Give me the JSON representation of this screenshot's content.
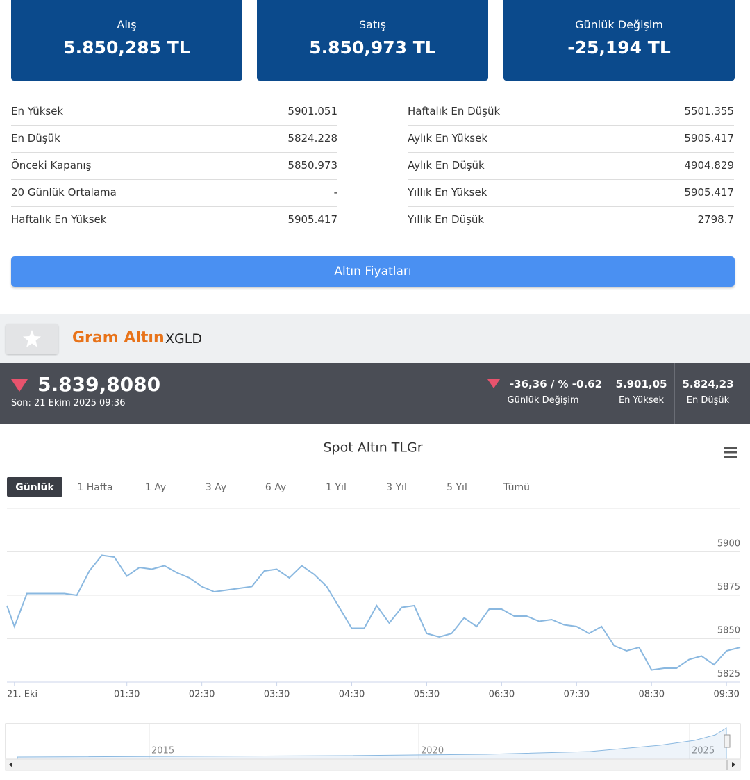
{
  "price_cards": [
    {
      "label": "Alış",
      "value": "5.850,285 TL"
    },
    {
      "label": "Satış",
      "value": "5.850,973 TL"
    },
    {
      "label": "Günlük Değişim",
      "value": "-25,194 TL"
    }
  ],
  "stats": {
    "left": [
      {
        "label": "En Yüksek",
        "value": "5901.051"
      },
      {
        "label": "En Düşük",
        "value": "5824.228"
      },
      {
        "label": "Önceki Kapanış",
        "value": "5850.973"
      },
      {
        "label": "20 Günlük Ortalama",
        "value": "-"
      },
      {
        "label": "Haftalık En Yüksek",
        "value": "5905.417"
      }
    ],
    "right": [
      {
        "label": "Haftalık En Düşük",
        "value": "5501.355"
      },
      {
        "label": "Aylık En Yüksek",
        "value": "5905.417"
      },
      {
        "label": "Aylık En Düşük",
        "value": "4904.829"
      },
      {
        "label": "Yıllık En Yüksek",
        "value": "5905.417"
      },
      {
        "label": "Yıllık En Düşük",
        "value": "2798.7"
      }
    ]
  },
  "button": "Altın Fiyatları",
  "instrument": {
    "name": "Gram Altın",
    "code": "XGLD"
  },
  "quote": {
    "price": "5.839,8080",
    "time": "Son: 21 Ekim 2025 09:36",
    "change": "-36,36 / % -0.62",
    "change_label": "Günlük Değişim",
    "high": "5.901,05",
    "high_label": "En Yüksek",
    "low": "5.824,23",
    "low_label": "En Düşük"
  },
  "range_selector": {
    "buttons": [
      "Günlük",
      "1 Hafta",
      "1 Ay",
      "3 Ay",
      "6 Ay",
      "1 Yıl",
      "3 Yıl",
      "5 Yıl",
      "Tümü"
    ],
    "selected": 0
  },
  "navigator": {
    "labels": [
      "2015",
      "2020",
      "2025"
    ]
  },
  "chart_data": {
    "type": "line",
    "title": "Spot Altın TLGr",
    "color": "#8ab8e0",
    "grid": true,
    "x": [
      -6,
      0,
      10,
      20,
      30,
      40,
      50,
      60,
      70,
      80,
      90,
      100,
      110,
      120,
      130,
      140,
      150,
      160,
      170,
      180,
      190,
      200,
      210,
      220,
      230,
      240,
      250,
      260,
      270,
      280,
      290,
      300,
      310,
      320,
      330,
      340,
      350,
      360,
      370,
      380,
      390,
      400,
      410,
      420,
      430,
      440,
      450,
      460,
      470,
      480,
      490,
      500,
      510,
      520,
      530,
      540,
      550,
      560,
      570,
      581
    ],
    "values": [
      5869,
      5857,
      5876,
      5876,
      5876,
      5876,
      5875,
      5889,
      5898,
      5897,
      5886,
      5891,
      5890,
      5892,
      5888,
      5885,
      5880,
      5877,
      5878,
      5879,
      5880,
      5889,
      5890,
      5885,
      5892,
      5887,
      5880,
      5868,
      5856,
      5856,
      5869,
      5859,
      5868,
      5869,
      5853,
      5851,
      5853,
      5862,
      5857,
      5867,
      5867,
      5863,
      5863,
      5860,
      5861,
      5858,
      5857,
      5853,
      5857,
      5846,
      5843,
      5845,
      5832,
      5833,
      5833,
      5838,
      5840,
      5835,
      5843,
      5845
    ],
    "xlim": [
      -6,
      581
    ],
    "ylim": [
      5825,
      5925
    ],
    "xticks": [
      {
        "value": 0,
        "label": "21. Eki"
      },
      {
        "value": 90,
        "label": "01:30"
      },
      {
        "value": 150,
        "label": "02:30"
      },
      {
        "value": 210,
        "label": "03:30"
      },
      {
        "value": 270,
        "label": "04:30"
      },
      {
        "value": 330,
        "label": "05:30"
      },
      {
        "value": 390,
        "label": "06:30"
      },
      {
        "value": 450,
        "label": "07:30"
      },
      {
        "value": 510,
        "label": "08:30"
      },
      {
        "value": 570,
        "label": "09:30"
      }
    ],
    "yticks": [
      5825,
      5850,
      5875,
      5900
    ]
  }
}
